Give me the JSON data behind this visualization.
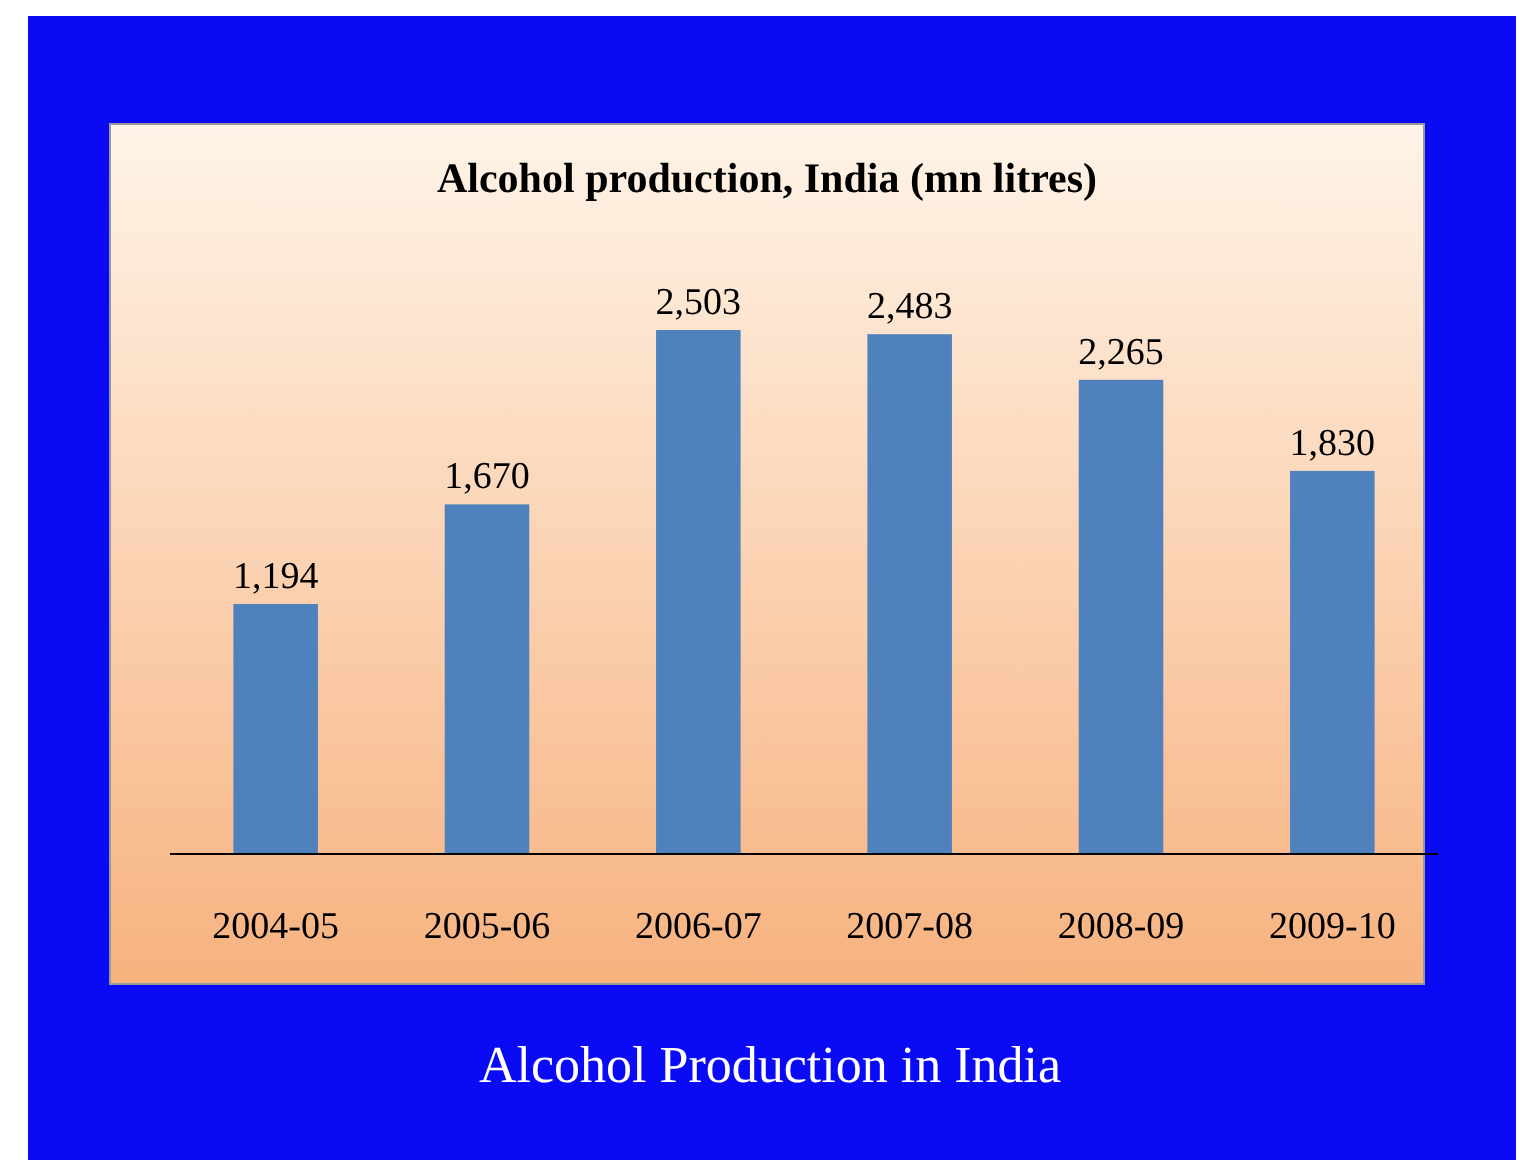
{
  "chart_data": {
    "type": "bar",
    "title": "Alcohol production, India (mn litres)",
    "categories": [
      "2004-05",
      "2005-06",
      "2006-07",
      "2007-08",
      "2008-09",
      "2009-10"
    ],
    "values": [
      1194,
      1670,
      2503,
      2483,
      2265,
      1830
    ],
    "color": "#4f81bd",
    "value_labels": [
      "1,194",
      "1,670",
      "2,503",
      "2,483",
      "2,265",
      "1,830"
    ],
    "annotations": [
      "Alcohol Production in India"
    ]
  }
}
